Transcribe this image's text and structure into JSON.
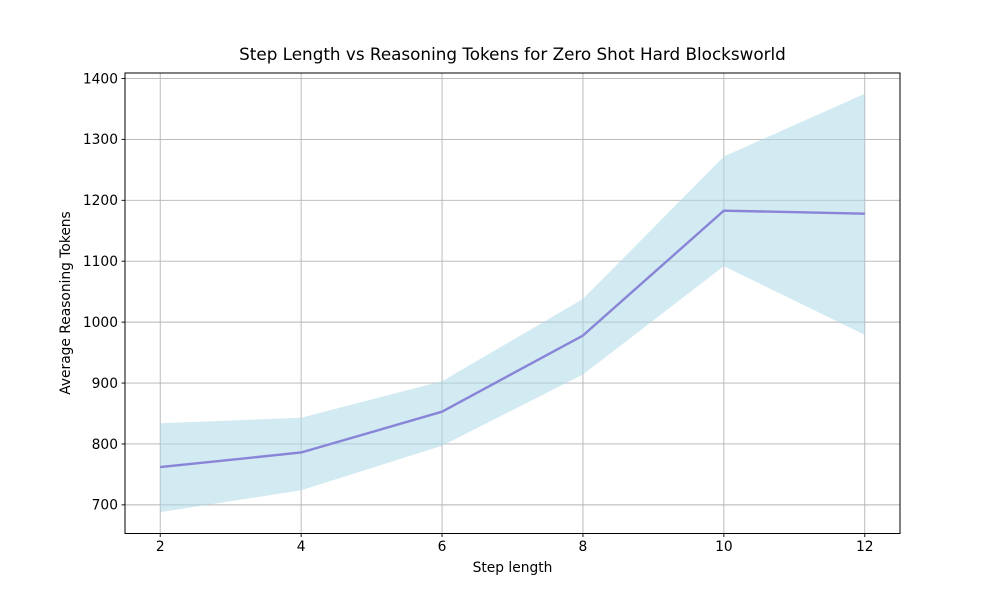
{
  "chart_data": {
    "type": "line",
    "title": "Step Length vs Reasoning Tokens for Zero Shot Hard Blocksworld",
    "xlabel": "Step length",
    "ylabel": "Average Reasoning Tokens",
    "x": [
      2,
      4,
      6,
      8,
      10,
      12
    ],
    "series": [
      {
        "name": "average-reasoning-tokens-mean",
        "values": [
          762,
          786,
          853,
          978,
          1183,
          1178
        ],
        "color": "#8884d8",
        "linewidth": 2.4
      }
    ],
    "band": {
      "name": "confidence-band",
      "upper": [
        834,
        843,
        903,
        1038,
        1272,
        1375
      ],
      "lower": [
        688,
        724,
        797,
        914,
        1092,
        979
      ],
      "color": "#add8e6",
      "opacity": 0.55
    },
    "xlim": [
      1.5,
      12.5
    ],
    "ylim": [
      653,
      1409
    ],
    "xticks": [
      2,
      4,
      6,
      8,
      10,
      12
    ],
    "yticks": [
      700,
      800,
      900,
      1000,
      1100,
      1200,
      1300,
      1400
    ],
    "grid": true,
    "legend": "none",
    "background": "#ffffff",
    "grid_color": "#b3b3b3",
    "axis_color": "#000000",
    "tick_font_px": 13.8
  }
}
